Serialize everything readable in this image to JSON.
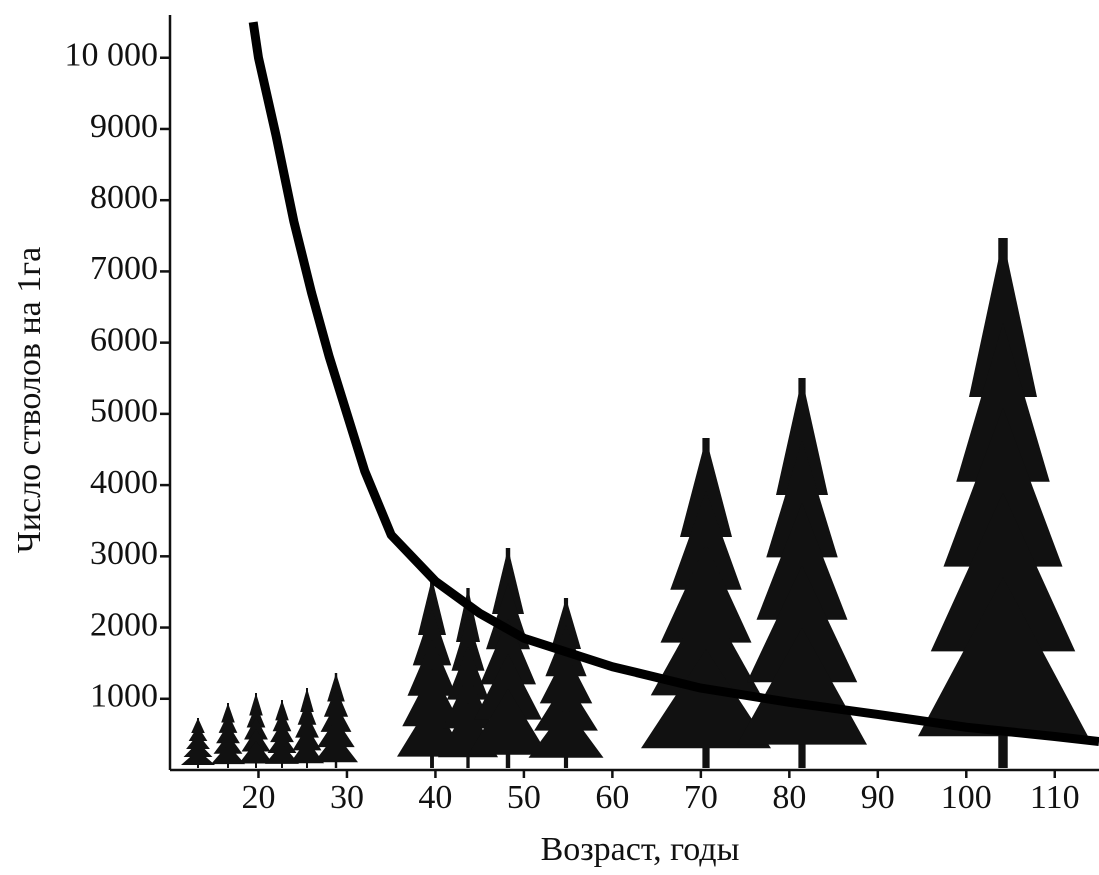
{
  "chart_data": {
    "type": "line",
    "x_label": "Возраст, годы",
    "y_label": "Число стволов на 1га",
    "series": [
      {
        "color": "#000000",
        "x": [
          19.4,
          20,
          22,
          24,
          26,
          28,
          30,
          32,
          35,
          40,
          45,
          50,
          60,
          70,
          80,
          90,
          100,
          110,
          115
        ],
        "values": [
          10500,
          10000,
          8900,
          7700,
          6700,
          5800,
          5000,
          4200,
          3300,
          2650,
          2200,
          1850,
          1450,
          1150,
          950,
          780,
          600,
          470,
          400
        ]
      }
    ],
    "xlim": [
      10,
      115
    ],
    "ylim": [
      0,
      10600
    ],
    "xticks": [
      20,
      30,
      40,
      50,
      60,
      70,
      80,
      90,
      100,
      110
    ],
    "yticks": [
      1000,
      2000,
      3000,
      4000,
      5000,
      6000,
      7000,
      8000,
      9000,
      {
        "value": 10000,
        "label": "10 000"
      }
    ]
  }
}
